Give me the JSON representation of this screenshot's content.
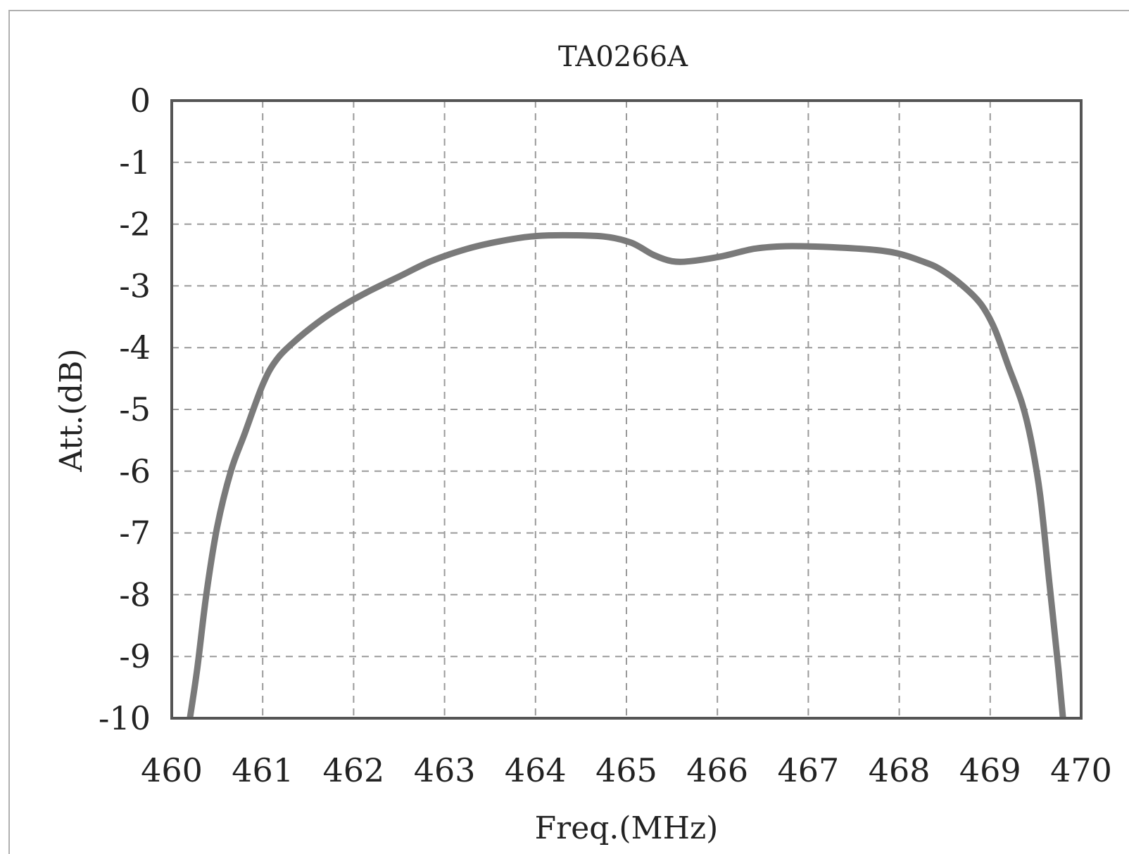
{
  "chart_data": {
    "type": "line",
    "title": "TA0266A",
    "xlabel": "Freq.(MHz)",
    "ylabel": "Att.(dB)",
    "xlim": [
      460,
      470
    ],
    "ylim": [
      -10,
      0
    ],
    "x_ticks": [
      "460",
      "461",
      "462",
      "463",
      "464",
      "465",
      "466",
      "467",
      "468",
      "469",
      "470"
    ],
    "y_ticks": [
      "0",
      "-1",
      "-2",
      "-3",
      "-4",
      "-5",
      "-6",
      "-7",
      "-8",
      "-9",
      "-10"
    ],
    "grid": true,
    "legend": "none",
    "line_color": "#7a7a7a",
    "series": [
      {
        "x": [
          460.2,
          460.28,
          460.38,
          460.5,
          460.65,
          460.8,
          461.0,
          461.15,
          461.35,
          461.6,
          461.85,
          462.15,
          462.5,
          462.85,
          463.25,
          463.6,
          463.95,
          464.3,
          464.75,
          465.05,
          465.3,
          465.5,
          465.7,
          466.05,
          466.4,
          466.7,
          467.0,
          467.35,
          467.75,
          468.0,
          468.25,
          468.45,
          468.7,
          468.9,
          469.05,
          469.2,
          469.35,
          469.45,
          469.55,
          469.65,
          469.75,
          469.8
        ],
        "y": [
          -10.0,
          -9.2,
          -8.0,
          -6.9,
          -6.0,
          -5.4,
          -4.6,
          -4.2,
          -3.9,
          -3.6,
          -3.35,
          -3.1,
          -2.85,
          -2.6,
          -2.4,
          -2.28,
          -2.2,
          -2.18,
          -2.2,
          -2.3,
          -2.5,
          -2.6,
          -2.6,
          -2.52,
          -2.4,
          -2.36,
          -2.36,
          -2.38,
          -2.42,
          -2.48,
          -2.6,
          -2.73,
          -3.0,
          -3.3,
          -3.7,
          -4.3,
          -4.9,
          -5.5,
          -6.4,
          -7.8,
          -9.2,
          -10.0
        ]
      }
    ]
  }
}
